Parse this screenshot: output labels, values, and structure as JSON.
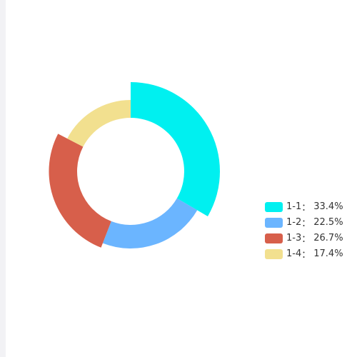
{
  "chart_data": {
    "type": "pie",
    "variant": "donut",
    "categories": [
      "1-1",
      "1-2",
      "1-3",
      "1-4"
    ],
    "values": [
      33.4,
      22.5,
      26.7,
      17.4
    ],
    "value_labels": [
      "33.4%",
      "22.5%",
      "26.7%",
      "17.4%"
    ],
    "colors": [
      "#00f0f0",
      "#6bb5ff",
      "#d75f4b",
      "#f2e08f"
    ],
    "radius_variation": "outer radius varies by value (rose-style)",
    "legend_placement": "right",
    "legend_separator": "："
  }
}
